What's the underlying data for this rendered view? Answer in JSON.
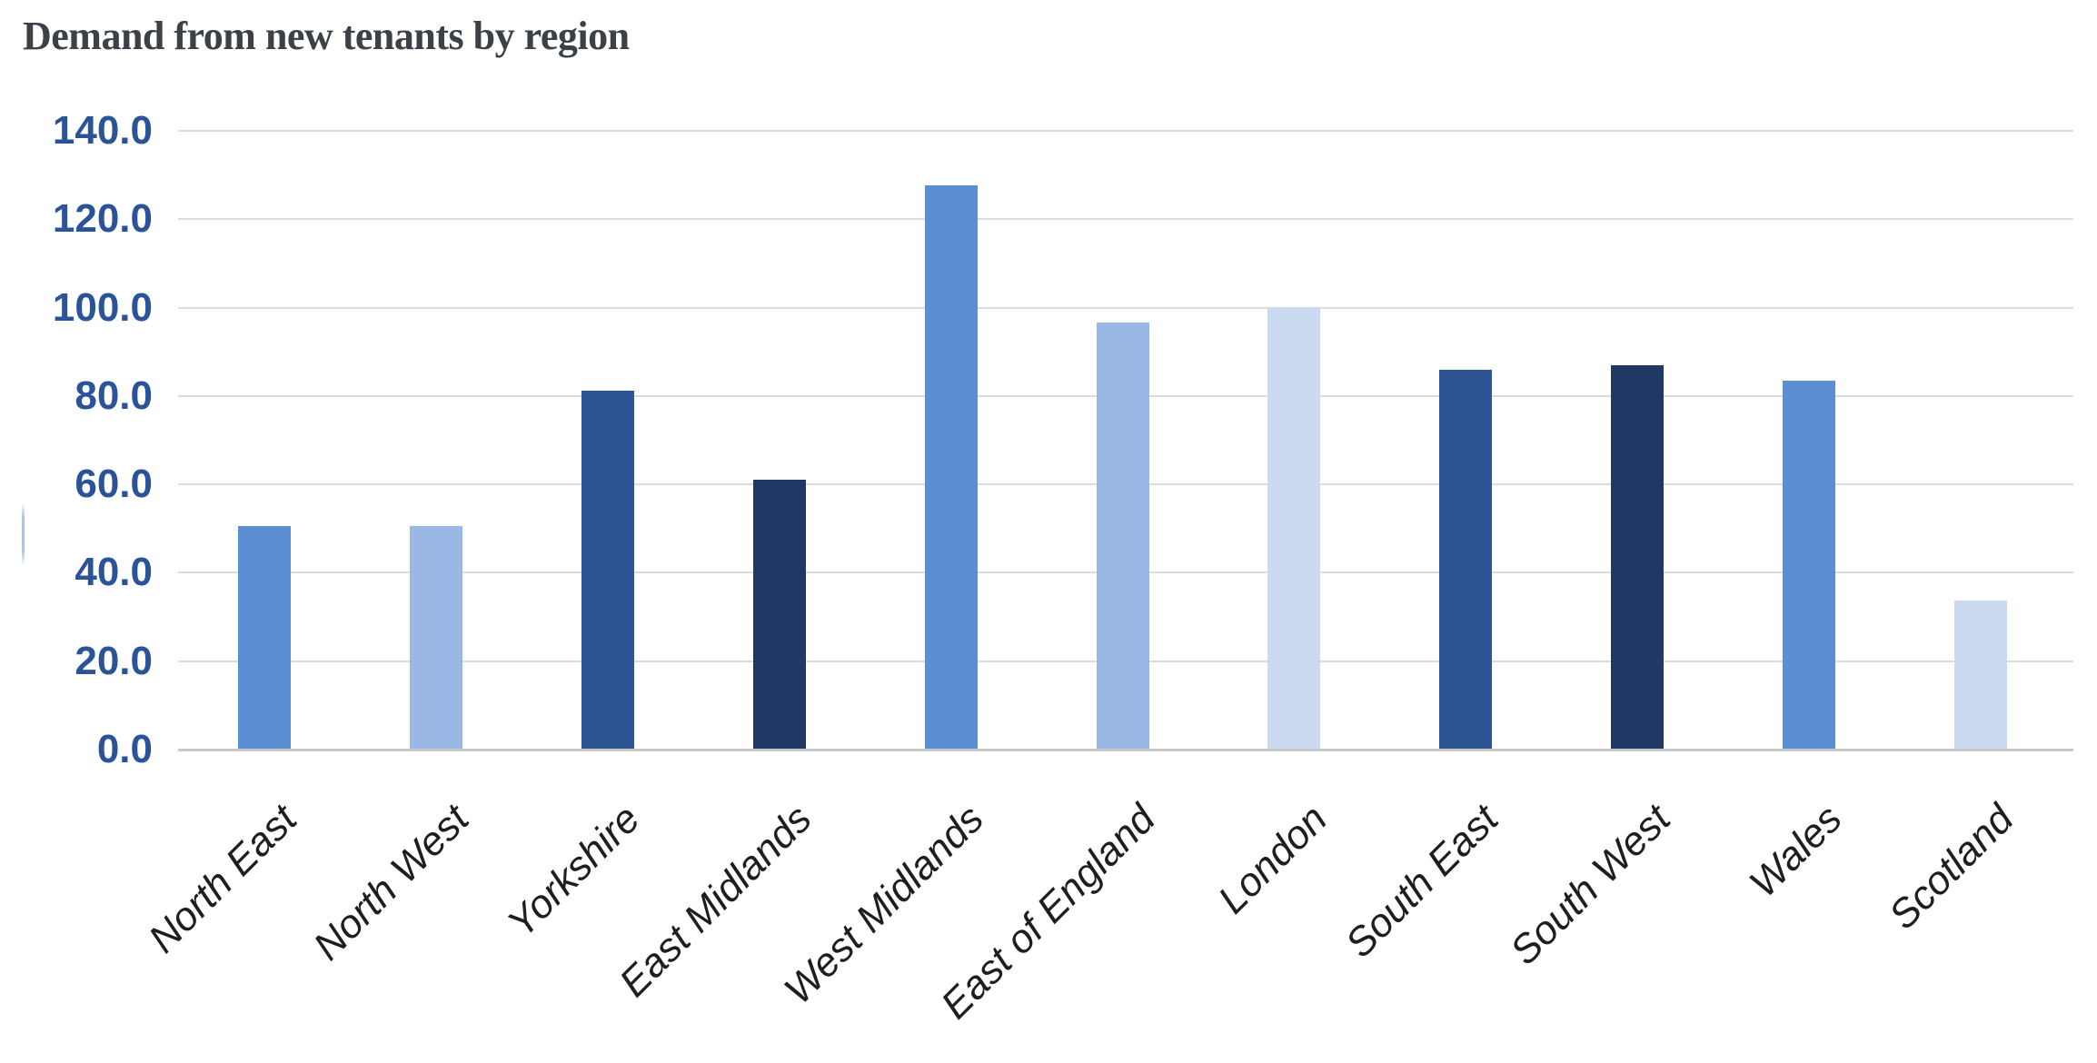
{
  "title": {
    "text": "Demand from new tenants by region",
    "color": "#3c4148"
  },
  "chart_data": {
    "type": "bar",
    "title": "Demand from new tenants by region",
    "categories": [
      "North East",
      "North West",
      "Yorkshire",
      "East Midlands",
      "West Midlands",
      "East of England",
      "London",
      "South East",
      "South West",
      "Wales",
      "Scotland"
    ],
    "values": [
      50.3,
      50.3,
      81.1,
      60.9,
      127.4,
      96.4,
      100.0,
      85.8,
      86.8,
      83.3,
      33.5
    ],
    "bar_colors": [
      "#5b8ed3",
      "#9ab8e5",
      "#2d5493",
      "#1f3864",
      "#5b8ed3",
      "#9ab8e5",
      "#cbd9f1",
      "#2d5493",
      "#1f3864",
      "#5b8ed3",
      "#cbd9f1"
    ],
    "xlabel": "",
    "ylabel": "",
    "ylim": [
      0,
      140
    ],
    "yticks": [
      0,
      20,
      40,
      60,
      80,
      100,
      120,
      140
    ],
    "ytick_labels": [
      "0.0",
      "20.0",
      "40.0",
      "60.0",
      "80.0",
      "100.0",
      "120.0",
      "140.0"
    ],
    "grid": true,
    "legend": "none",
    "colors": {
      "ytick_text": "#2b5397",
      "xtick_text": "#1e1e1e",
      "gridline": "#dcdcdc",
      "baseline": "#c9c9c9",
      "background": "#ffffff"
    }
  }
}
